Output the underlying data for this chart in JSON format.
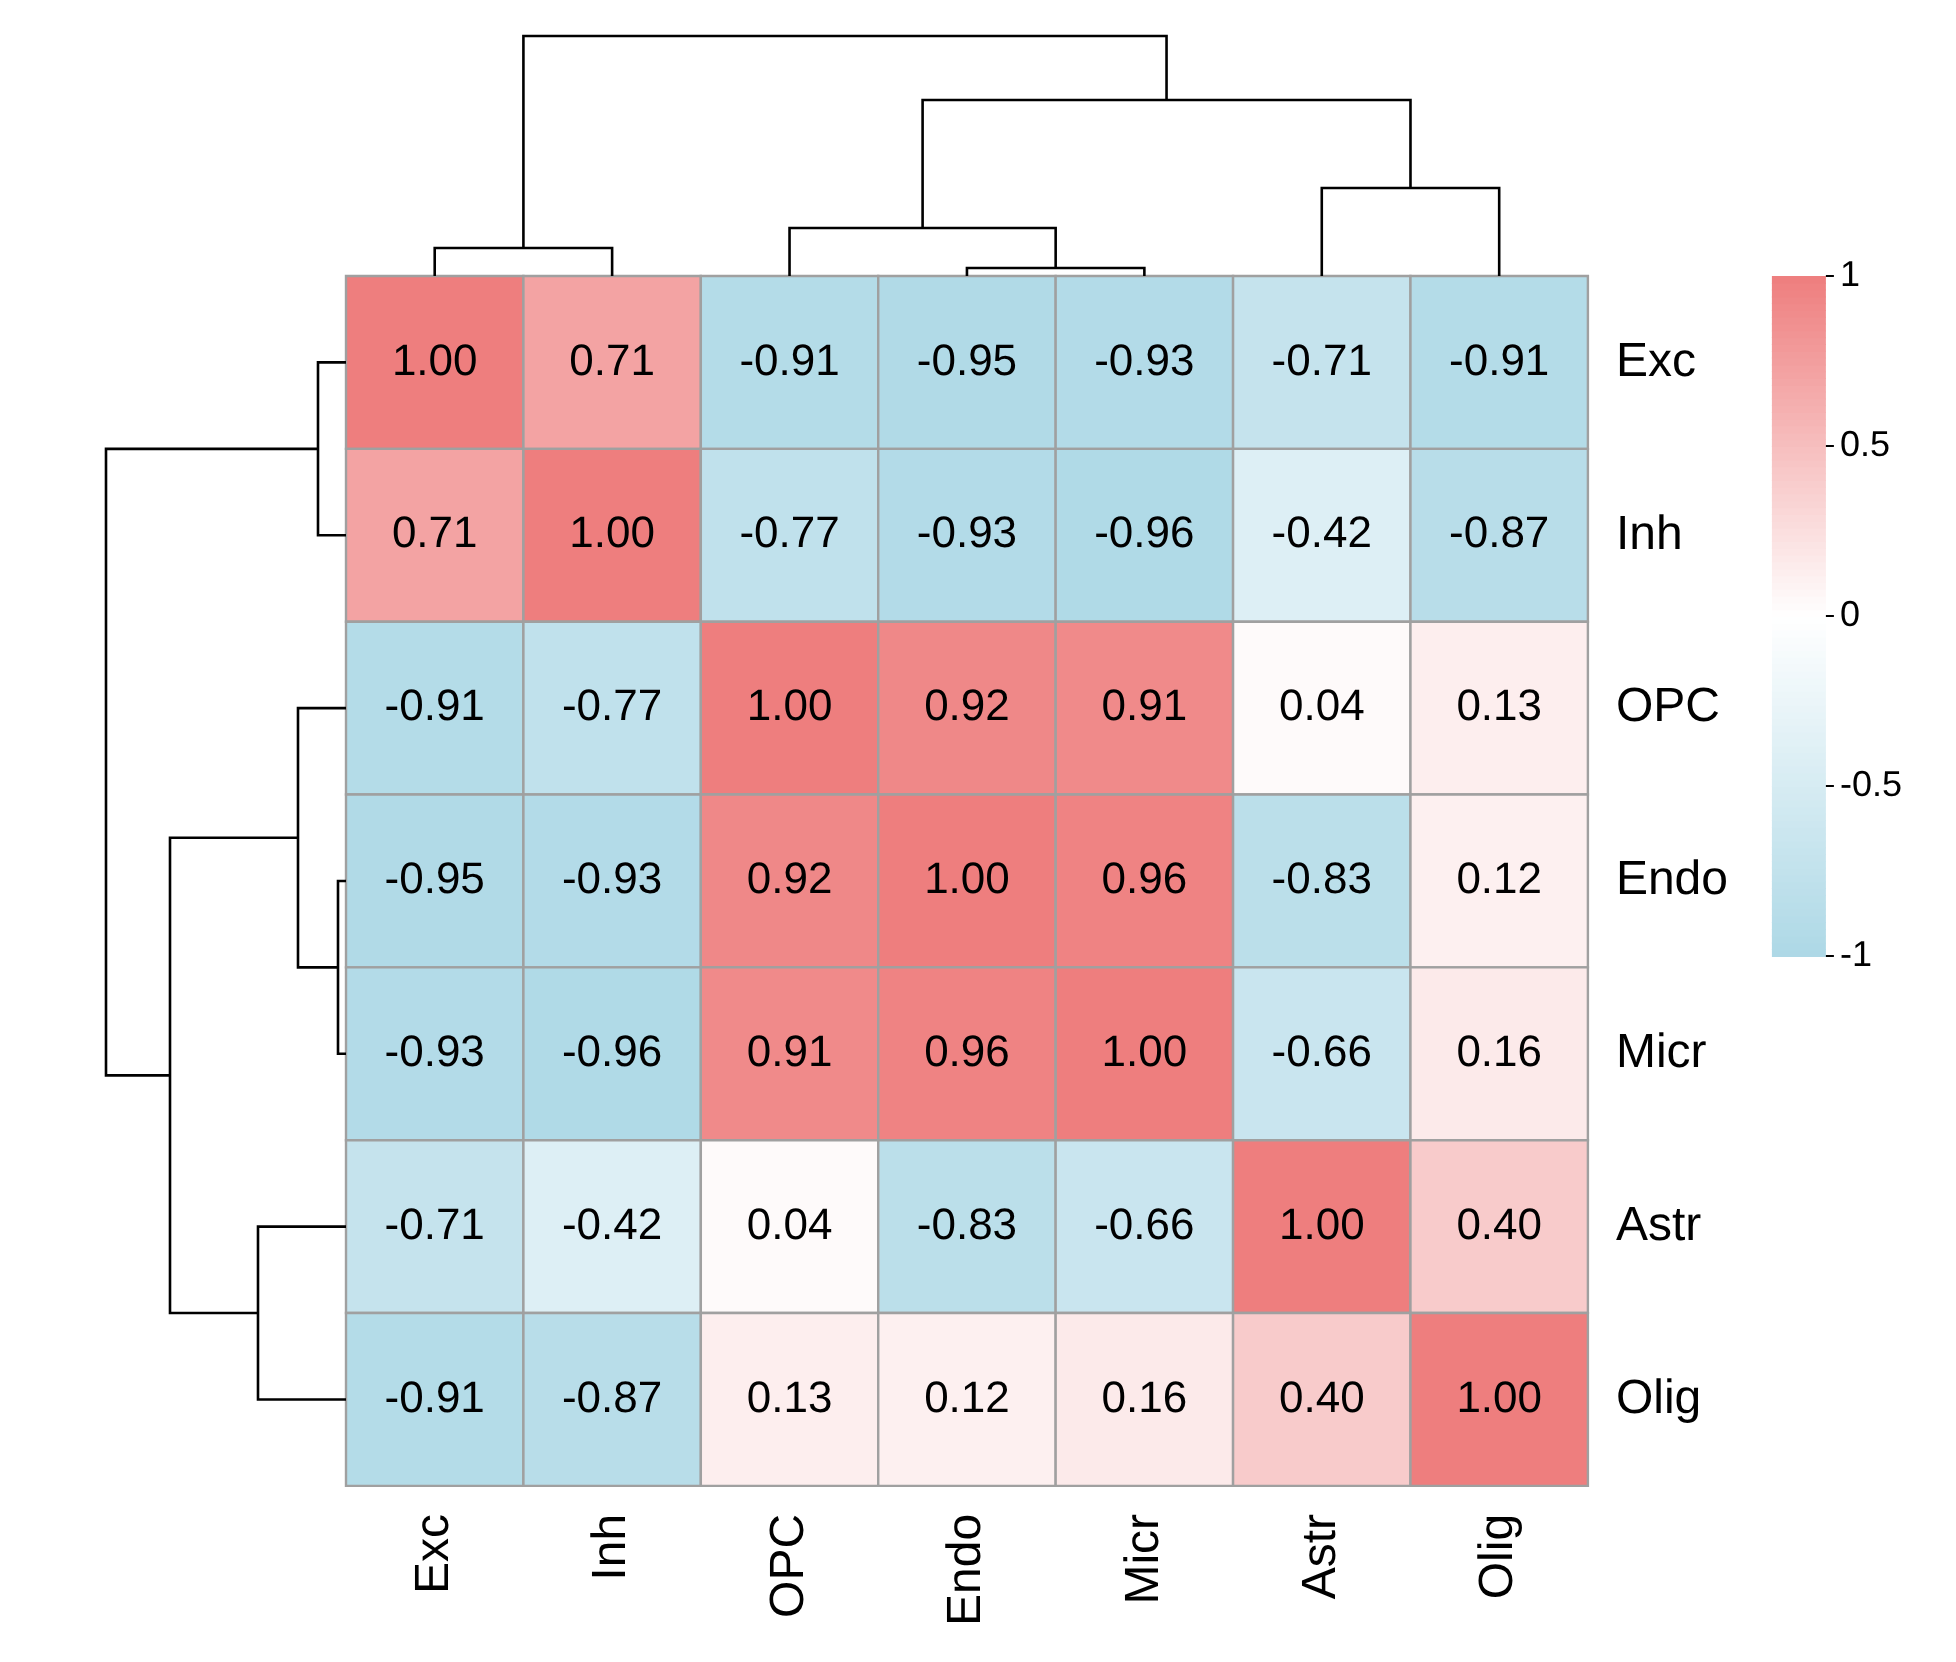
{
  "chart_data": {
    "type": "heatmap",
    "categories": [
      "Exc",
      "Inh",
      "OPC",
      "Endo",
      "Micr",
      "Astr",
      "Olig"
    ],
    "y_categories": [
      "Exc",
      "Inh",
      "OPC",
      "Endo",
      "Micr",
      "Astr",
      "Olig"
    ],
    "cells": [
      [
        1.0,
        0.71,
        -0.91,
        -0.95,
        -0.93,
        -0.71,
        -0.91
      ],
      [
        0.71,
        1.0,
        -0.77,
        -0.93,
        -0.96,
        -0.42,
        -0.87
      ],
      [
        -0.91,
        -0.77,
        1.0,
        0.92,
        0.91,
        0.04,
        0.13
      ],
      [
        -0.95,
        -0.93,
        0.92,
        1.0,
        0.96,
        -0.83,
        0.12
      ],
      [
        -0.93,
        -0.96,
        0.91,
        0.96,
        1.0,
        -0.66,
        0.16
      ],
      [
        -0.71,
        -0.42,
        0.04,
        -0.83,
        -0.66,
        1.0,
        0.4
      ],
      [
        -0.91,
        -0.87,
        0.13,
        0.12,
        0.16,
        0.4,
        1.0
      ]
    ],
    "cell_labels": [
      [
        "1.00",
        "0.71",
        "-0.91",
        "-0.95",
        "-0.93",
        "-0.71",
        "-0.91"
      ],
      [
        "0.71",
        "1.00",
        "-0.77",
        "-0.93",
        "-0.96",
        "-0.42",
        "-0.87"
      ],
      [
        "-0.91",
        "-0.77",
        "1.00",
        "0.92",
        "0.91",
        "0.04",
        "0.13"
      ],
      [
        "-0.95",
        "-0.93",
        "0.92",
        "1.00",
        "0.96",
        "-0.83",
        "0.12"
      ],
      [
        "-0.93",
        "-0.96",
        "0.91",
        "0.96",
        "1.00",
        "-0.66",
        "0.16"
      ],
      [
        "-0.71",
        "-0.42",
        "0.04",
        "-0.83",
        "-0.66",
        "1.00",
        "0.40"
      ],
      [
        "-0.91",
        "-0.87",
        "0.13",
        "0.12",
        "0.16",
        "0.40",
        "1.00"
      ]
    ],
    "clim": [
      -1,
      1
    ],
    "cticks": [
      -1,
      -0.5,
      0,
      0.5,
      1
    ]
  }
}
